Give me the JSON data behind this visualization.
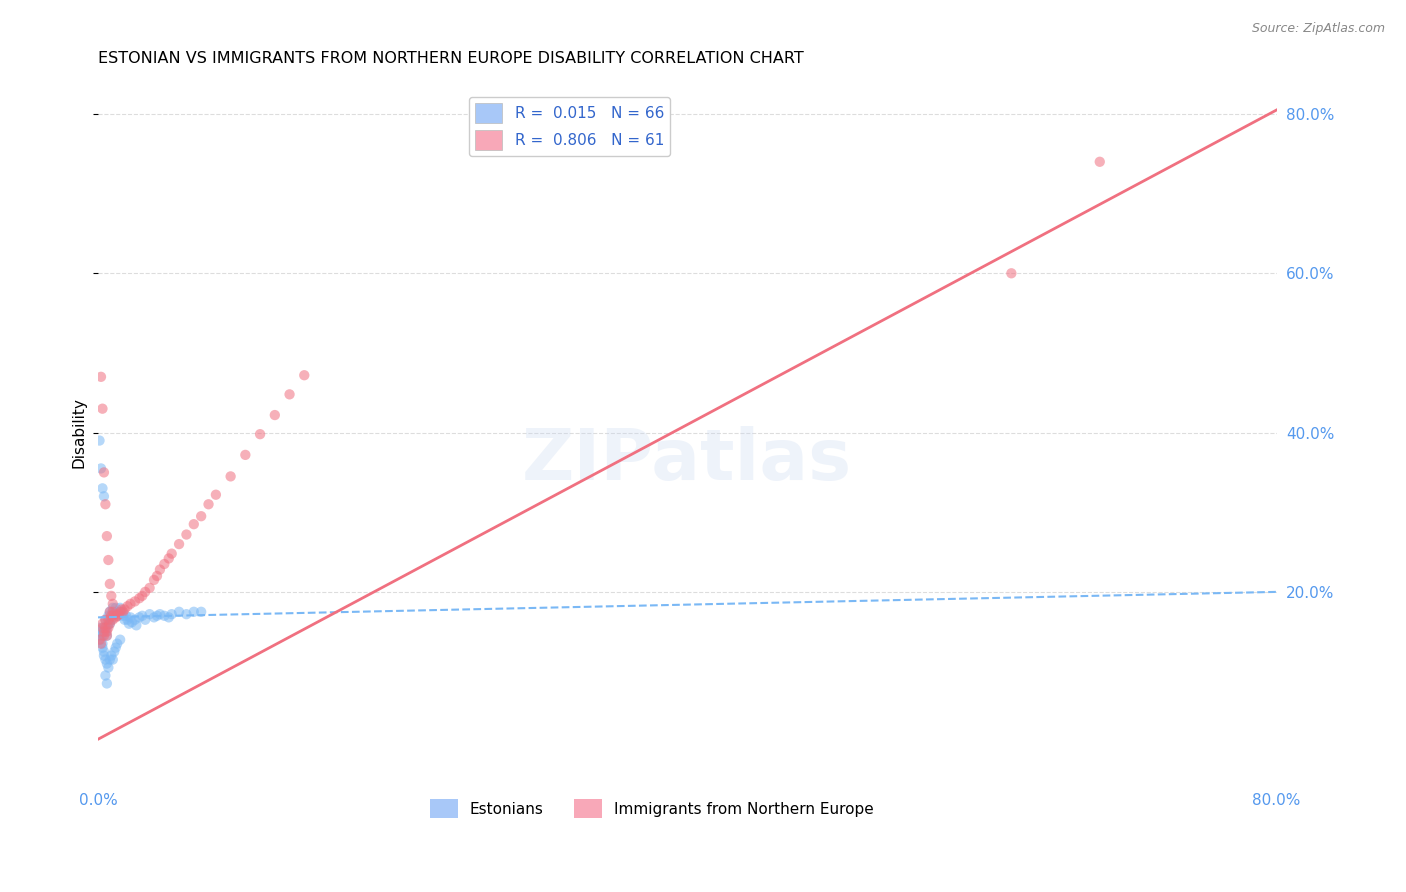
{
  "title": "ESTONIAN VS IMMIGRANTS FROM NORTHERN EUROPE DISABILITY CORRELATION CHART",
  "source": "Source: ZipAtlas.com",
  "ylabel": "Disability",
  "xlim": [
    0.0,
    0.8
  ],
  "ylim": [
    -0.04,
    0.84
  ],
  "y_ticks_right": [
    0.2,
    0.4,
    0.6,
    0.8
  ],
  "y_tick_labels_right": [
    "20.0%",
    "40.0%",
    "60.0%",
    "80.0%"
  ],
  "x_ticks": [
    0.0,
    0.1,
    0.2,
    0.3,
    0.4,
    0.5,
    0.6,
    0.7,
    0.8
  ],
  "x_tick_labels": [
    "0.0%",
    "",
    "",
    "",
    "",
    "",
    "",
    "",
    "80.0%"
  ],
  "watermark": "ZIPatlas",
  "grid_color": "#dddddd",
  "bg_color": "#ffffff",
  "scatter_alpha": 0.55,
  "scatter_size": 55,
  "blue_color": "#7ab8f5",
  "pink_color": "#f07080",
  "blue_line_color": "#7ab8f5",
  "pink_line_color": "#f07080",
  "blue_line_x": [
    0.0,
    0.8
  ],
  "blue_line_y": [
    0.168,
    0.2
  ],
  "pink_line_x": [
    0.0,
    0.8
  ],
  "pink_line_y": [
    0.015,
    0.805
  ],
  "blue_scatter_x": [
    0.001,
    0.001,
    0.002,
    0.002,
    0.003,
    0.003,
    0.003,
    0.004,
    0.004,
    0.004,
    0.005,
    0.005,
    0.005,
    0.006,
    0.006,
    0.006,
    0.007,
    0.007,
    0.007,
    0.008,
    0.008,
    0.008,
    0.009,
    0.009,
    0.01,
    0.01,
    0.01,
    0.011,
    0.011,
    0.012,
    0.012,
    0.013,
    0.013,
    0.014,
    0.015,
    0.015,
    0.016,
    0.017,
    0.018,
    0.019,
    0.02,
    0.021,
    0.022,
    0.023,
    0.025,
    0.026,
    0.028,
    0.03,
    0.032,
    0.035,
    0.038,
    0.04,
    0.042,
    0.045,
    0.048,
    0.05,
    0.055,
    0.06,
    0.065,
    0.07,
    0.001,
    0.002,
    0.003,
    0.004,
    0.005,
    0.006
  ],
  "blue_scatter_y": [
    0.155,
    0.145,
    0.15,
    0.14,
    0.135,
    0.145,
    0.13,
    0.155,
    0.125,
    0.12,
    0.165,
    0.15,
    0.115,
    0.155,
    0.145,
    0.11,
    0.17,
    0.16,
    0.105,
    0.175,
    0.16,
    0.115,
    0.165,
    0.12,
    0.18,
    0.17,
    0.115,
    0.175,
    0.125,
    0.18,
    0.13,
    0.175,
    0.135,
    0.17,
    0.18,
    0.14,
    0.175,
    0.17,
    0.165,
    0.17,
    0.165,
    0.16,
    0.168,
    0.162,
    0.165,
    0.158,
    0.168,
    0.17,
    0.165,
    0.172,
    0.168,
    0.17,
    0.172,
    0.17,
    0.168,
    0.172,
    0.175,
    0.172,
    0.175,
    0.175,
    0.39,
    0.355,
    0.33,
    0.32,
    0.095,
    0.085
  ],
  "pink_scatter_x": [
    0.001,
    0.002,
    0.003,
    0.003,
    0.004,
    0.004,
    0.005,
    0.005,
    0.006,
    0.006,
    0.007,
    0.007,
    0.008,
    0.008,
    0.009,
    0.01,
    0.01,
    0.011,
    0.012,
    0.013,
    0.014,
    0.015,
    0.016,
    0.017,
    0.018,
    0.02,
    0.022,
    0.025,
    0.028,
    0.03,
    0.032,
    0.035,
    0.038,
    0.04,
    0.042,
    0.045,
    0.048,
    0.05,
    0.055,
    0.06,
    0.065,
    0.07,
    0.075,
    0.08,
    0.09,
    0.1,
    0.11,
    0.12,
    0.13,
    0.14,
    0.002,
    0.003,
    0.004,
    0.005,
    0.006,
    0.007,
    0.008,
    0.009,
    0.01,
    0.62,
    0.68
  ],
  "pink_scatter_y": [
    0.14,
    0.135,
    0.16,
    0.155,
    0.15,
    0.145,
    0.165,
    0.155,
    0.15,
    0.145,
    0.165,
    0.155,
    0.175,
    0.16,
    0.17,
    0.175,
    0.165,
    0.172,
    0.168,
    0.17,
    0.172,
    0.175,
    0.178,
    0.175,
    0.178,
    0.182,
    0.185,
    0.188,
    0.192,
    0.195,
    0.2,
    0.205,
    0.215,
    0.22,
    0.228,
    0.235,
    0.242,
    0.248,
    0.26,
    0.272,
    0.285,
    0.295,
    0.31,
    0.322,
    0.345,
    0.372,
    0.398,
    0.422,
    0.448,
    0.472,
    0.47,
    0.43,
    0.35,
    0.31,
    0.27,
    0.24,
    0.21,
    0.195,
    0.185,
    0.6,
    0.74
  ]
}
